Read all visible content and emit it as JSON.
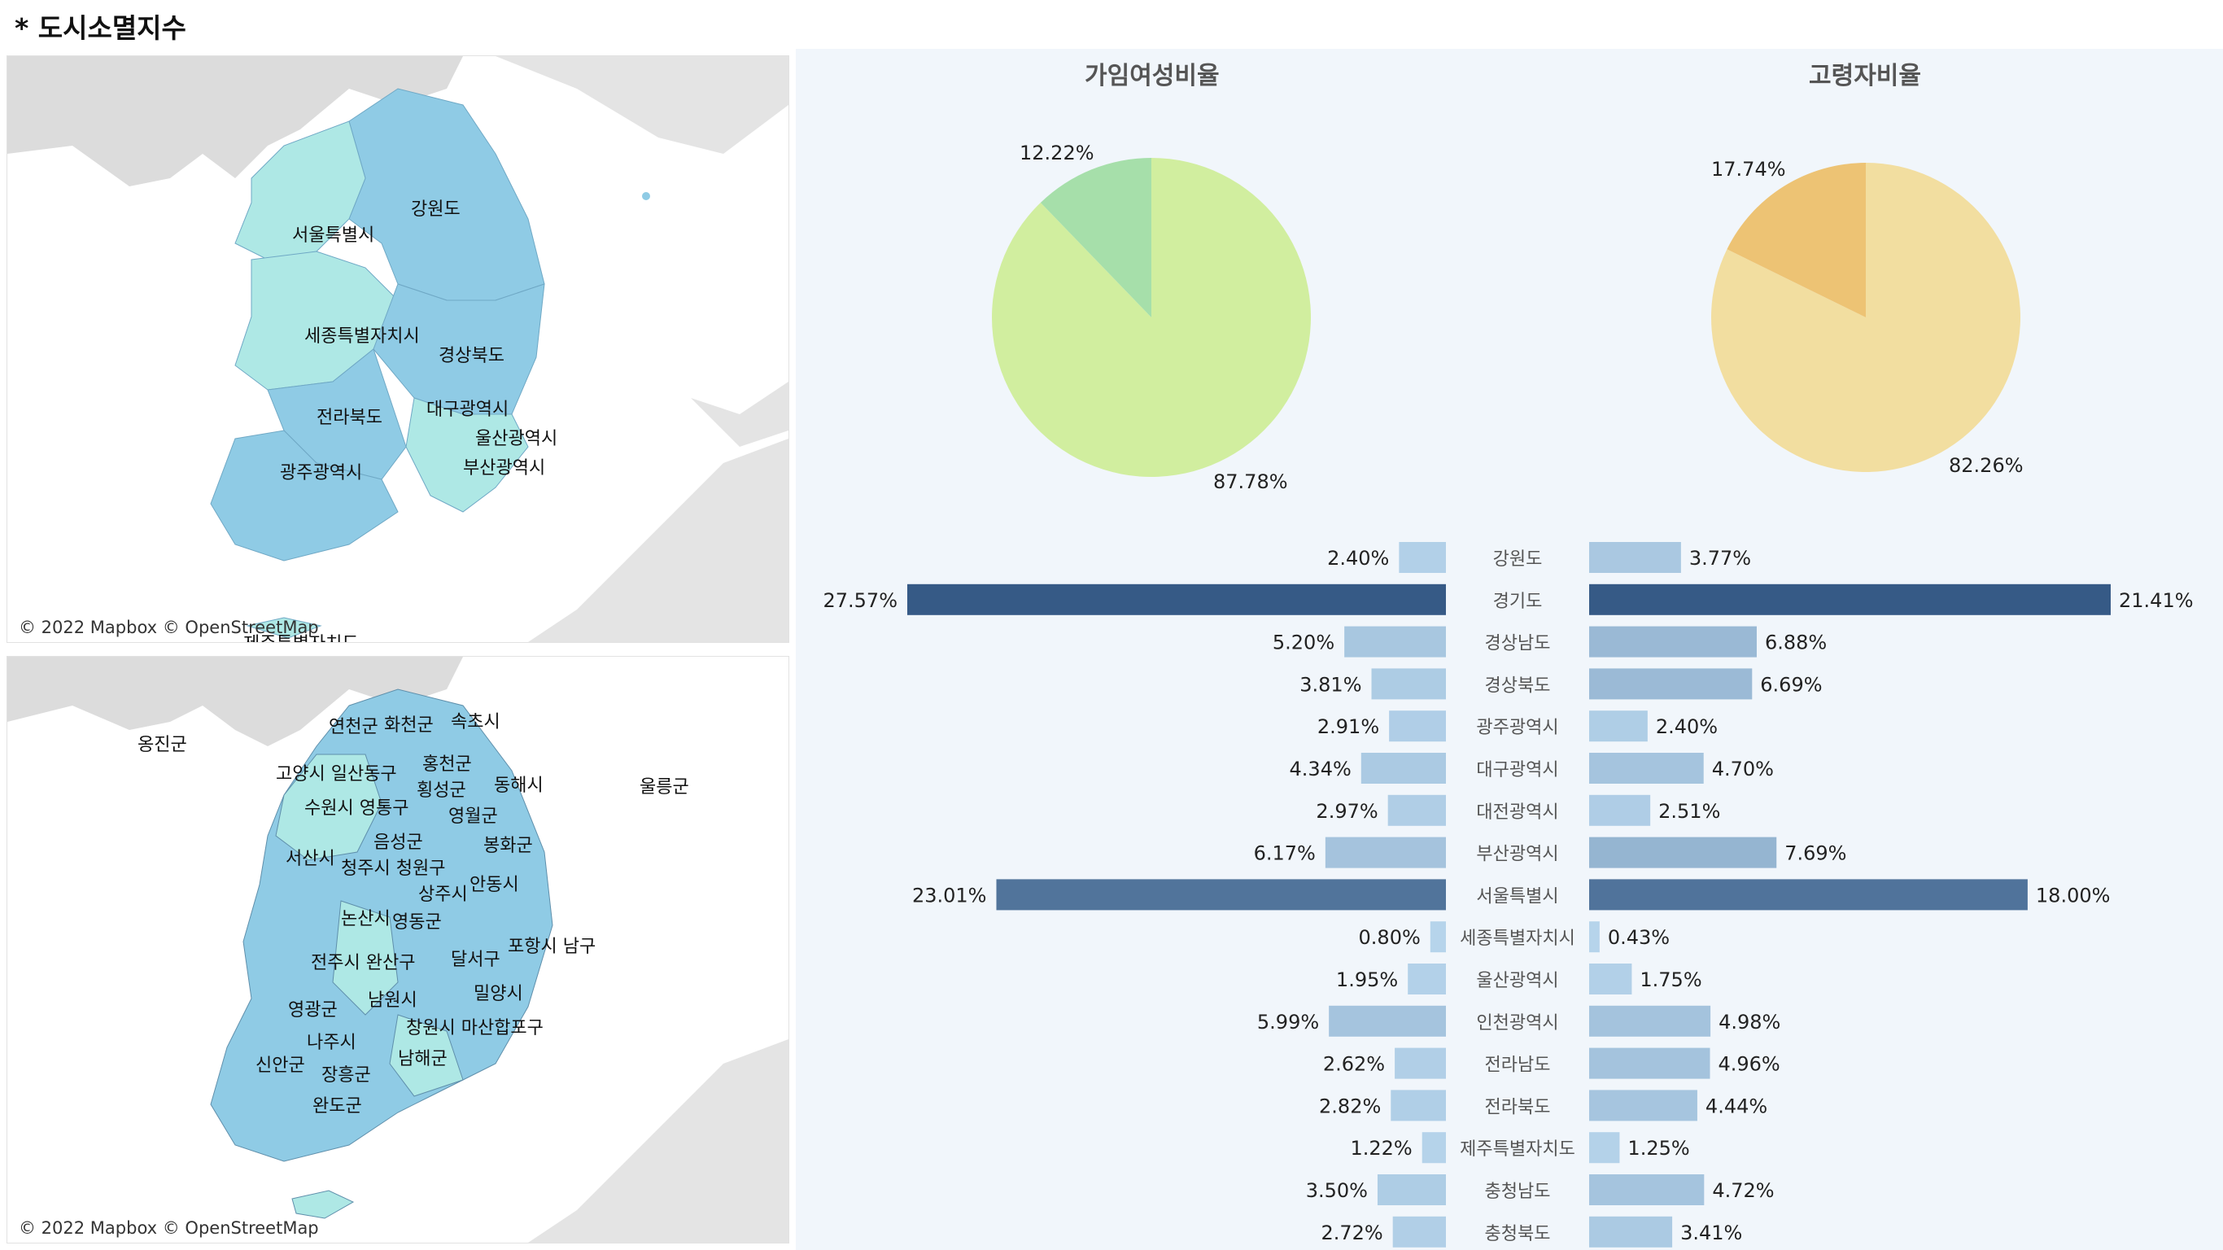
{
  "title": "* 도시소멸지수",
  "attribution": "© 2022 Mapbox © OpenStreetMap",
  "map1": {
    "labels": [
      "강원도",
      "서울특별시",
      "세종특별자치시",
      "경상북도",
      "전라북도",
      "대구광역시",
      "울산광역시",
      "광주광역시",
      "부산광역시",
      "제주특별자치도"
    ]
  },
  "map2": {
    "labels": [
      "연천군",
      "화천군",
      "속초시",
      "옹진군",
      "고양시 일산동구",
      "홍천군",
      "횡성군",
      "동해시",
      "울릉군",
      "수원시 영통구",
      "영월군",
      "음성군",
      "봉화군",
      "서산시",
      "청주시 청원구",
      "안동시",
      "상주시",
      "논산시",
      "영동군",
      "포항시 남구",
      "전주시 완산구",
      "달서구",
      "영광군",
      "남원시",
      "밀양시",
      "나주시",
      "창원시 마산합포구",
      "신안군",
      "남해군",
      "장흥군",
      "완도군"
    ]
  },
  "pies": [
    {
      "title": "가임여성비율",
      "small_label": "12.22%",
      "large_label": "87.78%",
      "small": 12.22,
      "large": 87.78,
      "small_color": "#a6dfaa",
      "large_color": "#d1ee9f"
    },
    {
      "title": "고령자비율",
      "small_label": "17.74%",
      "large_label": "82.26%",
      "small": 17.74,
      "large": 82.26,
      "small_color": "#edc374",
      "large_color": "#f2dea0"
    }
  ],
  "chart_data": {
    "type": "bar",
    "categories": [
      "강원도",
      "경기도",
      "경상남도",
      "경상북도",
      "광주광역시",
      "대구광역시",
      "대전광역시",
      "부산광역시",
      "서울특별시",
      "세종특별자치시",
      "울산광역시",
      "인천광역시",
      "전라남도",
      "전라북도",
      "제주특별자치도",
      "충청남도",
      "충청북도"
    ],
    "series": [
      {
        "values": [
          2.4,
          27.57,
          5.2,
          3.81,
          2.91,
          4.34,
          2.97,
          6.17,
          23.01,
          0.8,
          1.95,
          5.99,
          2.62,
          2.82,
          1.22,
          3.5,
          2.72
        ]
      },
      {
        "values": [
          3.77,
          21.41,
          6.88,
          6.69,
          2.4,
          4.7,
          2.51,
          7.69,
          18.0,
          0.43,
          1.75,
          4.98,
          4.96,
          4.44,
          1.25,
          4.72,
          3.41
        ]
      }
    ],
    "left_labels": [
      "2.40%",
      "27.57%",
      "5.20%",
      "3.81%",
      "2.91%",
      "4.34%",
      "2.97%",
      "6.17%",
      "23.01%",
      "0.80%",
      "1.95%",
      "5.99%",
      "2.62%",
      "2.82%",
      "1.22%",
      "3.50%",
      "2.72%"
    ],
    "right_labels": [
      "3.77%",
      "21.41%",
      "6.88%",
      "6.69%",
      "2.40%",
      "4.70%",
      "2.51%",
      "7.69%",
      "18.00%",
      "0.43%",
      "1.75%",
      "4.98%",
      "4.96%",
      "4.44%",
      "1.25%",
      "4.72%",
      "3.41%"
    ],
    "color_low": "#b7d5ec",
    "color_high": "#365a86"
  }
}
